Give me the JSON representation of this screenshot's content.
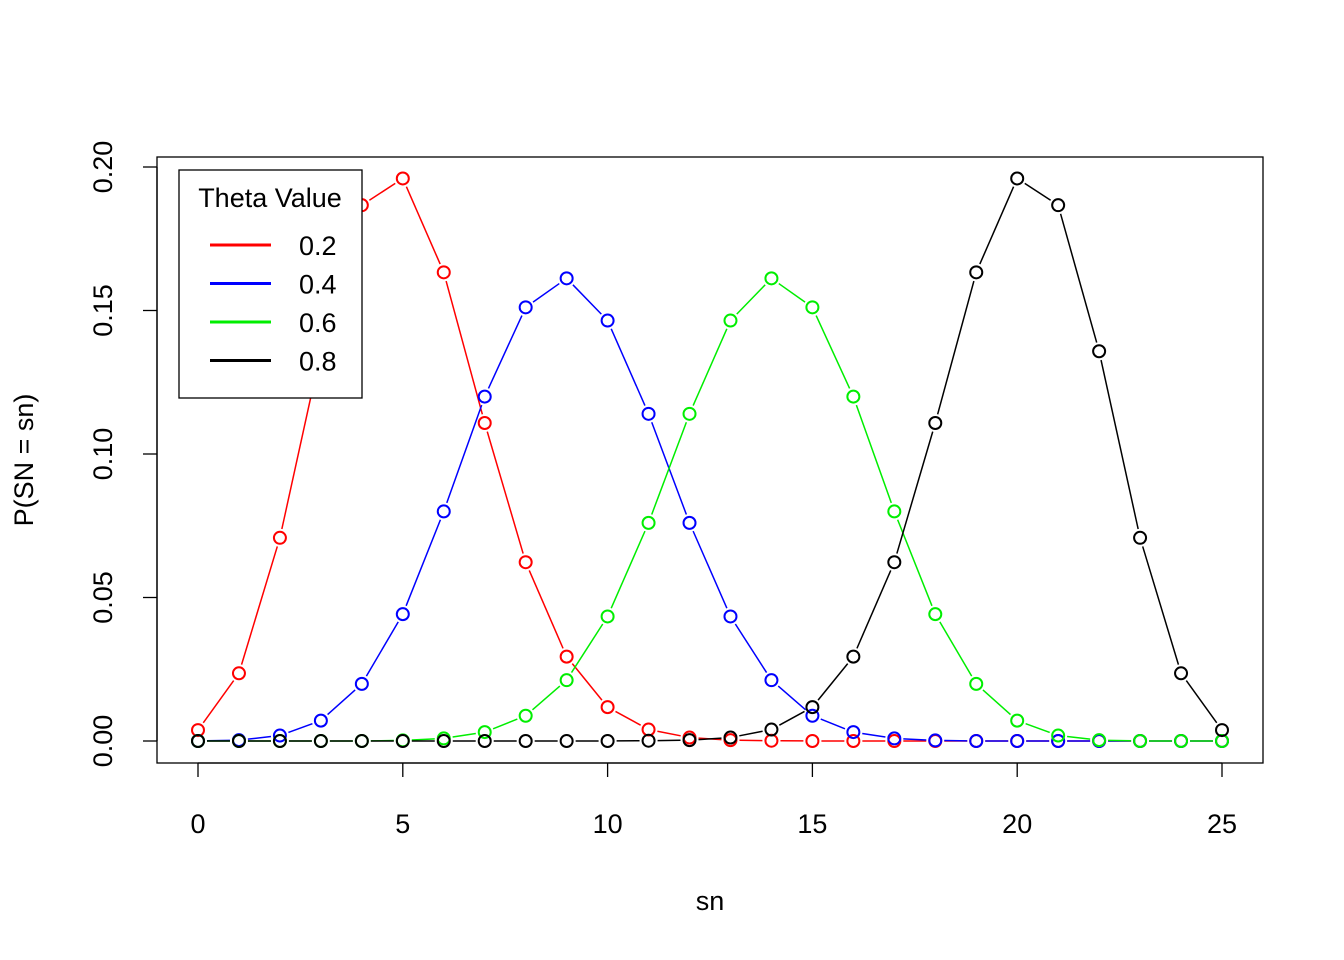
{
  "chart_data": {
    "type": "line",
    "title": "",
    "xlabel": "sn",
    "ylabel": "P(SN = sn)",
    "xlim": [
      0,
      25
    ],
    "ylim": [
      0,
      0.2
    ],
    "x_ticks": [
      "0",
      "5",
      "10",
      "15",
      "20",
      "25"
    ],
    "y_ticks": [
      "0.00",
      "0.05",
      "0.10",
      "0.15",
      "0.20"
    ],
    "grid": false,
    "legend": {
      "title": "Theta Value",
      "position": "top-left"
    },
    "x": [
      0,
      1,
      2,
      3,
      4,
      5,
      6,
      7,
      8,
      9,
      10,
      11,
      12,
      13,
      14,
      15,
      16,
      17,
      18,
      19,
      20,
      21,
      22,
      23,
      24,
      25
    ],
    "series": [
      {
        "name": "0.2",
        "color": "#ff0000",
        "values": [
          0.0038,
          0.0236,
          0.0708,
          0.1358,
          0.1867,
          0.196,
          0.1633,
          0.1108,
          0.0623,
          0.0294,
          0.0118,
          0.004,
          0.0012,
          0.0003,
          0.0001,
          0,
          0,
          0,
          0,
          0,
          0,
          0,
          0,
          0,
          0,
          0
        ]
      },
      {
        "name": "0.4",
        "color": "#0000ff",
        "values": [
          0,
          0.0003,
          0.0019,
          0.0071,
          0.0199,
          0.0442,
          0.08,
          0.12,
          0.1511,
          0.1612,
          0.1465,
          0.114,
          0.076,
          0.0434,
          0.0212,
          0.0088,
          0.0031,
          0.0009,
          0.0002,
          0,
          0,
          0,
          0,
          0,
          0,
          0
        ]
      },
      {
        "name": "0.6",
        "color": "#00ee00",
        "values": [
          0,
          0,
          0,
          0,
          0,
          0.0002,
          0.0009,
          0.0031,
          0.0088,
          0.0212,
          0.0434,
          0.076,
          0.114,
          0.1465,
          0.1612,
          0.1511,
          0.12,
          0.08,
          0.0442,
          0.0199,
          0.0071,
          0.0019,
          0.0003,
          0,
          0,
          0
        ]
      },
      {
        "name": "0.8",
        "color": "#000000",
        "values": [
          0,
          0,
          0,
          0,
          0,
          0,
          0,
          0,
          0,
          0,
          0,
          0.0001,
          0.0003,
          0.0012,
          0.004,
          0.0118,
          0.0294,
          0.0623,
          0.1108,
          0.1633,
          0.196,
          0.1867,
          0.1358,
          0.0708,
          0.0236,
          0.0038
        ]
      }
    ]
  }
}
